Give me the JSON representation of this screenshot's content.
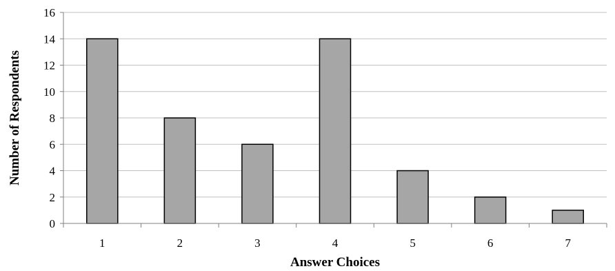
{
  "chart_data": {
    "type": "bar",
    "title": "",
    "xlabel": "Answer Choices",
    "ylabel": "Number of Respondents",
    "categories": [
      "1",
      "2",
      "3",
      "4",
      "5",
      "6",
      "7"
    ],
    "values": [
      14,
      8,
      6,
      14,
      4,
      2,
      1
    ],
    "ylim": [
      0,
      16
    ],
    "yticks": [
      "0",
      "2",
      "4",
      "6",
      "8",
      "10",
      "12",
      "14",
      "16"
    ],
    "grid": true,
    "legend": "none",
    "colors": {
      "bar_fill": "#a6a6a6",
      "bar_stroke": "#000000",
      "gridline": "#c0c0c0",
      "axis": "#808080"
    }
  }
}
